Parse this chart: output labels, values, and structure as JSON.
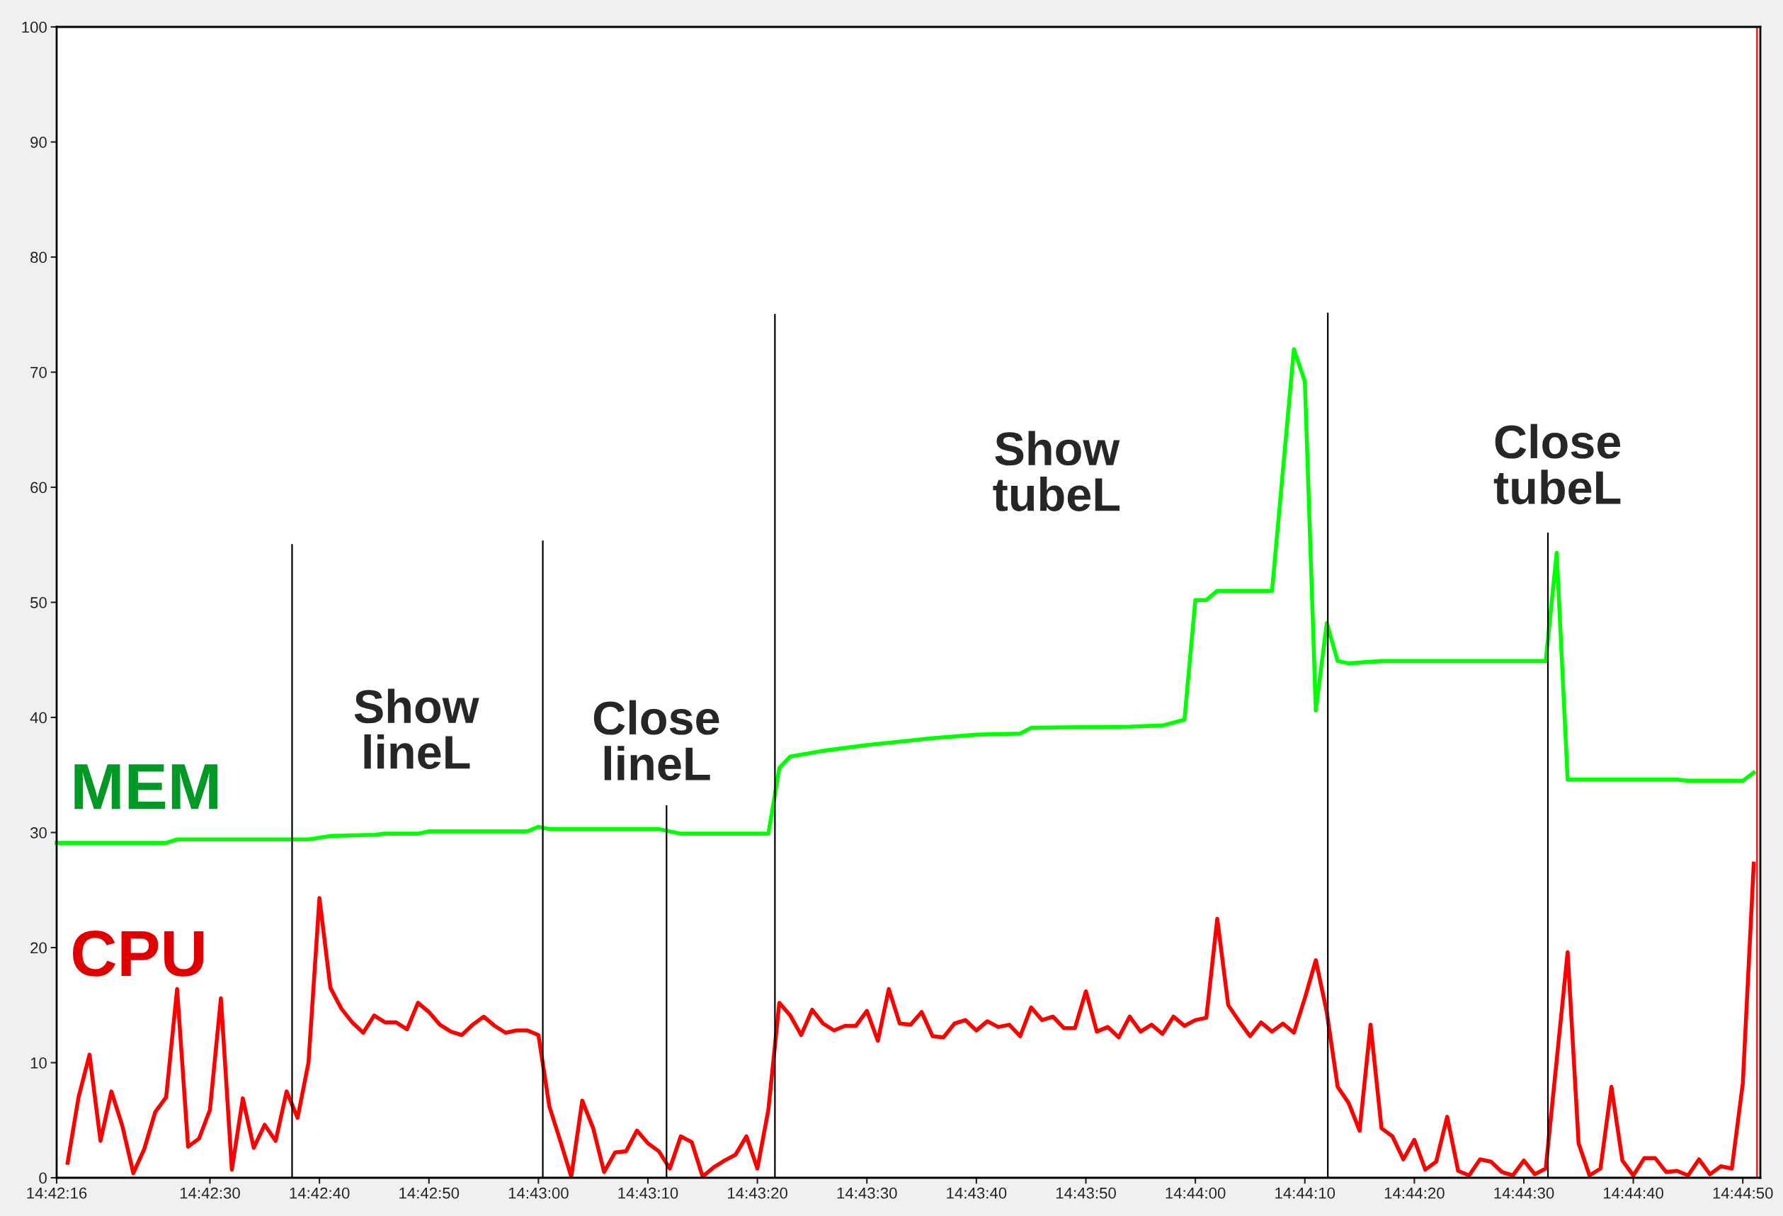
{
  "chart_data": {
    "type": "line",
    "xlim": [
      14.704444,
      14.747667
    ],
    "ylim": [
      0,
      100
    ],
    "xticks": [
      {
        "value": 14.704444,
        "label": "14:42:16"
      },
      {
        "value": 14.708333,
        "label": "14:42:30"
      },
      {
        "value": 14.711111,
        "label": "14:42:40"
      },
      {
        "value": 14.713889,
        "label": "14:42:50"
      },
      {
        "value": 14.716667,
        "label": "14:43:00"
      },
      {
        "value": 14.719444,
        "label": "14:43:10"
      },
      {
        "value": 14.722222,
        "label": "14:43:20"
      },
      {
        "value": 14.725,
        "label": "14:43:30"
      },
      {
        "value": 14.727778,
        "label": "14:43:40"
      },
      {
        "value": 14.730556,
        "label": "14:43:50"
      },
      {
        "value": 14.733333,
        "label": "14:44:00"
      },
      {
        "value": 14.736111,
        "label": "14:44:10"
      },
      {
        "value": 14.738889,
        "label": "14:44:20"
      },
      {
        "value": 14.741667,
        "label": "14:44:30"
      },
      {
        "value": 14.744444,
        "label": "14:44:40"
      },
      {
        "value": 14.747222,
        "label": "14:44:50"
      }
    ],
    "yticks": [
      0,
      10,
      20,
      30,
      40,
      50,
      60,
      70,
      80,
      90,
      100
    ],
    "grid": false,
    "legend": false,
    "marker": "none",
    "line_style": "solid",
    "series": [
      {
        "name": "MEM",
        "color": "#00ff00",
        "x": [
          14.704444,
          14.707222,
          14.7075,
          14.710833,
          14.711389,
          14.7125,
          14.712778,
          14.713611,
          14.713889,
          14.716389,
          14.716667,
          14.716944,
          14.719722,
          14.72,
          14.720278,
          14.7225,
          14.722778,
          14.723056,
          14.723889,
          14.725,
          14.726667,
          14.727778,
          14.728889,
          14.729167,
          14.731667,
          14.7325,
          14.733056,
          14.733333,
          14.733611,
          14.733889,
          14.735278,
          14.735833,
          14.736111,
          14.736389,
          14.736667,
          14.736944,
          14.737222,
          14.738056,
          14.742222,
          14.7425,
          14.742778,
          14.745556,
          14.745833,
          14.746944,
          14.747222,
          14.7475
        ],
        "values": [
          29.1,
          29.1,
          29.4,
          29.4,
          29.7,
          29.8,
          29.9,
          29.9,
          30.1,
          30.1,
          30.5,
          30.3,
          30.3,
          30.1,
          29.9,
          29.9,
          35.6,
          36.6,
          37.1,
          37.6,
          38.2,
          38.5,
          38.6,
          39.1,
          39.2,
          39.3,
          39.8,
          50.2,
          50.2,
          51.0,
          51.0,
          72.0,
          69.2,
          40.6,
          48.2,
          44.9,
          44.7,
          44.9,
          44.9,
          54.3,
          34.6,
          34.6,
          34.5,
          34.5,
          34.5,
          35.2
        ]
      },
      {
        "name": "CPU",
        "color": "#ff0000",
        "x": [
          14.704722,
          14.705,
          14.705278,
          14.705556,
          14.705833,
          14.706111,
          14.706389,
          14.706667,
          14.706944,
          14.707222,
          14.7075,
          14.707778,
          14.708056,
          14.708333,
          14.708611,
          14.708889,
          14.709167,
          14.709444,
          14.709722,
          14.71,
          14.710278,
          14.710556,
          14.710833,
          14.711111,
          14.711389,
          14.711667,
          14.711944,
          14.712222,
          14.7125,
          14.712778,
          14.713056,
          14.713333,
          14.713611,
          14.713889,
          14.714167,
          14.714444,
          14.714722,
          14.715,
          14.715278,
          14.715556,
          14.715833,
          14.716111,
          14.716389,
          14.716667,
          14.716944,
          14.717222,
          14.7175,
          14.717778,
          14.718056,
          14.718333,
          14.718611,
          14.718889,
          14.719167,
          14.719444,
          14.719722,
          14.72,
          14.720278,
          14.720556,
          14.720833,
          14.721111,
          14.721389,
          14.721667,
          14.721944,
          14.722222,
          14.7225,
          14.722778,
          14.723056,
          14.723333,
          14.723611,
          14.723889,
          14.724167,
          14.724444,
          14.724722,
          14.725,
          14.725278,
          14.725556,
          14.725833,
          14.726111,
          14.726389,
          14.726667,
          14.726944,
          14.727222,
          14.7275,
          14.727778,
          14.728056,
          14.728333,
          14.728611,
          14.728889,
          14.729167,
          14.729444,
          14.729722,
          14.73,
          14.730278,
          14.730556,
          14.730833,
          14.731111,
          14.731389,
          14.731667,
          14.731944,
          14.732222,
          14.7325,
          14.732778,
          14.733056,
          14.733333,
          14.733611,
          14.733889,
          14.734167,
          14.734444,
          14.734722,
          14.735,
          14.735278,
          14.735556,
          14.735833,
          14.736111,
          14.736389,
          14.736667,
          14.736944,
          14.737222,
          14.7375,
          14.737778,
          14.738056,
          14.738333,
          14.738611,
          14.738889,
          14.739167,
          14.739444,
          14.739722,
          14.74,
          14.740278,
          14.740556,
          14.740833,
          14.741111,
          14.741389,
          14.741667,
          14.741944,
          14.742222,
          14.7425,
          14.742778,
          14.743056,
          14.743333,
          14.743611,
          14.743889,
          14.744167,
          14.744444,
          14.744722,
          14.745,
          14.745278,
          14.745556,
          14.745833,
          14.746111,
          14.746389,
          14.746667,
          14.746944,
          14.747222,
          14.7475
        ],
        "values": [
          1.3,
          7.0,
          10.7,
          3.2,
          7.5,
          4.5,
          0.4,
          2.5,
          5.7,
          7.0,
          16.4,
          2.7,
          3.4,
          5.9,
          15.6,
          0.7,
          6.9,
          2.6,
          4.6,
          3.2,
          7.5,
          5.2,
          10.0,
          24.3,
          16.5,
          14.7,
          13.5,
          12.6,
          14.1,
          13.5,
          13.5,
          12.9,
          15.2,
          14.4,
          13.3,
          12.7,
          12.4,
          13.3,
          14.0,
          13.2,
          12.6,
          12.8,
          12.8,
          12.4,
          6.2,
          3.2,
          0.1,
          6.7,
          4.3,
          0.5,
          2.2,
          2.3,
          4.1,
          3.0,
          2.3,
          0.8,
          3.6,
          3.1,
          0.1,
          0.9,
          1.5,
          2.0,
          3.6,
          0.8,
          5.9,
          15.2,
          14.1,
          12.4,
          14.6,
          13.4,
          12.8,
          13.2,
          13.2,
          14.5,
          11.9,
          16.4,
          13.4,
          13.3,
          14.4,
          12.3,
          12.2,
          13.4,
          13.7,
          12.8,
          13.6,
          13.1,
          13.3,
          12.3,
          14.8,
          13.7,
          14.0,
          13.0,
          13.0,
          16.2,
          12.7,
          13.1,
          12.2,
          14.0,
          12.7,
          13.3,
          12.5,
          14.0,
          13.2,
          13.7,
          13.9,
          22.5,
          15.0,
          13.6,
          12.3,
          13.5,
          12.7,
          13.4,
          12.6,
          15.6,
          18.9,
          14.4,
          7.9,
          6.5,
          4.1,
          13.3,
          4.3,
          3.6,
          1.6,
          3.3,
          0.7,
          1.4,
          5.3,
          0.6,
          0.2,
          1.6,
          1.4,
          0.5,
          0.2,
          1.5,
          0.3,
          0.8,
          10.2,
          19.6,
          3.0,
          0.2,
          0.8,
          7.9,
          1.5,
          0.2,
          1.7,
          1.7,
          0.5,
          0.6,
          0.2,
          1.6,
          0.3,
          1.0,
          0.8,
          8.2,
          27.3
        ]
      },
      {
        "color": "#000000",
        "x": [
          14.710417,
          14.710417
        ],
        "values": [
          0,
          55.0
        ]
      },
      {
        "color": "#000000",
        "x": [
          14.716778,
          14.716778
        ],
        "values": [
          0,
          55.3
        ]
      },
      {
        "color": "#000000",
        "x": [
          14.719917,
          14.719917
        ],
        "values": [
          0,
          32.3
        ]
      },
      {
        "color": "#000000",
        "x": [
          14.722667,
          14.722667
        ],
        "values": [
          0,
          75.0
        ]
      },
      {
        "color": "#000000",
        "x": [
          14.736694,
          14.736694
        ],
        "values": [
          0,
          75.1
        ]
      },
      {
        "color": "#000000",
        "x": [
          14.742278,
          14.742278
        ],
        "values": [
          0,
          56.0
        ]
      }
    ],
    "ref_lines": [
      {
        "axis": "x",
        "value": 14.747583,
        "color": "#ff0000"
      }
    ],
    "annotations": [
      "Show\nlineL",
      "Close\nlineL",
      "Show\ntubeL",
      "Close\ntubeL"
    ]
  }
}
